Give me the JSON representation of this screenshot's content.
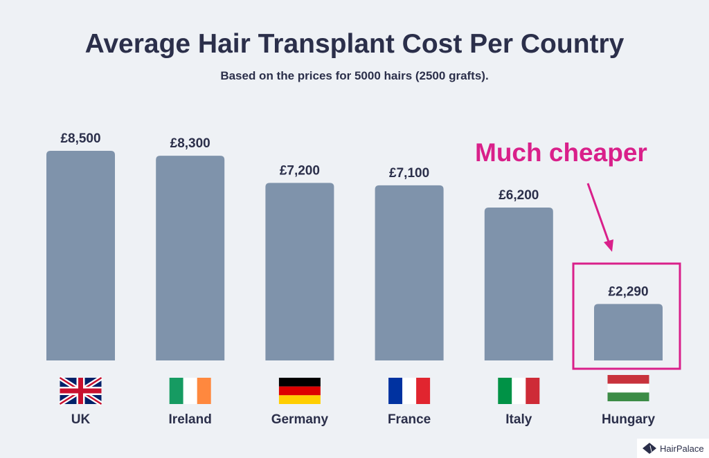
{
  "chart_data": {
    "type": "bar",
    "title": "Average Hair Transplant Cost Per Country",
    "subtitle": "Based on the prices for 5000 hairs (2500 grafts).",
    "categories": [
      "UK",
      "Ireland",
      "Germany",
      "France",
      "Italy",
      "Hungary"
    ],
    "values": [
      8500,
      8300,
      7200,
      7100,
      6200,
      2290
    ],
    "data_labels": [
      "£8,500",
      "£8,300",
      "£7,200",
      "£7,100",
      "£6,200",
      "£2,290"
    ],
    "flags": [
      "uk-flag",
      "ireland-flag",
      "germany-flag",
      "france-flag",
      "italy-flag",
      "hungary-flag"
    ],
    "ylim": [
      0,
      8500
    ],
    "grid": false,
    "annotation": {
      "text": "Much cheaper",
      "target": "Hungary"
    },
    "colors": {
      "bar": "#7f93ab",
      "text": "#2b2f4a",
      "highlight": "#d9208a",
      "background": "#eef1f5"
    }
  },
  "logo": {
    "text": "HairPalace"
  }
}
